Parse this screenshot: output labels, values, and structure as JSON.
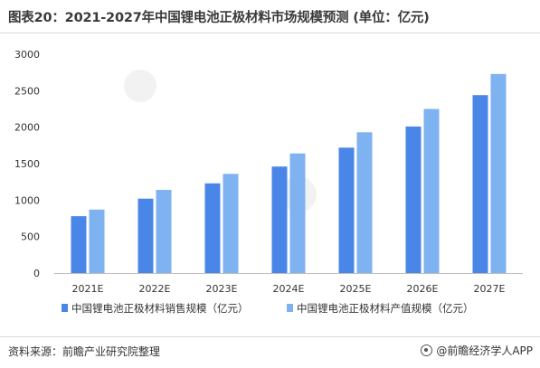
{
  "header": {
    "title": "图表20：2021-2027年中国锂电池正极材料市场规模预测 (单位：亿元)"
  },
  "footer": {
    "source": "资料来源：前瞻产业研究院整理",
    "brand": "@前瞻经济学人APP"
  },
  "colors": {
    "series_sales": "#4a86e8",
    "series_output": "#7fb2f0",
    "axis": "#bfbfbf",
    "text": "#333333"
  },
  "chart_data": {
    "type": "bar",
    "title": "",
    "xlabel": "",
    "ylabel": "",
    "categories": [
      "2021E",
      "2022E",
      "2023E",
      "2024E",
      "2025E",
      "2026E",
      "2027E"
    ],
    "ylim": [
      0,
      3000
    ],
    "yticks": [
      0,
      500,
      1000,
      1500,
      2000,
      2500,
      3000
    ],
    "grid": false,
    "legend_position": "bottom",
    "series": [
      {
        "name": "中国锂电池正极材料销售规模（亿元）",
        "color": "#4a86e8",
        "values": [
          780,
          1020,
          1230,
          1460,
          1720,
          2010,
          2440
        ]
      },
      {
        "name": "中国锂电池正极材料产值规模（亿元）",
        "color": "#7fb2f0",
        "values": [
          870,
          1140,
          1360,
          1640,
          1930,
          2250,
          2730
        ]
      }
    ]
  }
}
